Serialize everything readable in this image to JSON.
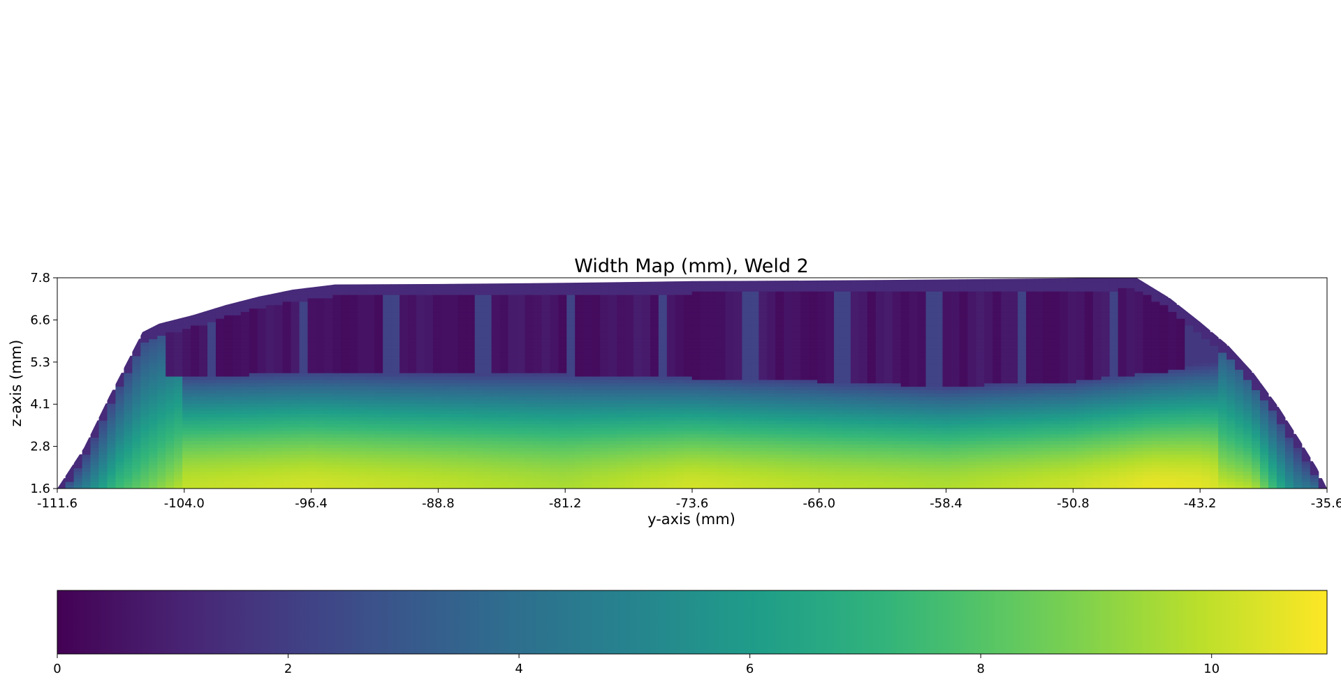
{
  "chart_data": [
    {
      "type": "heatmap",
      "title": "Width Map (mm), Weld 2",
      "xlabel": "y-axis (mm)",
      "ylabel": "z-axis (mm)",
      "xlim": [
        -111.6,
        -35.6
      ],
      "ylim": [
        1.6,
        7.8
      ],
      "x_ticks": [
        "-111.6",
        "-104.0",
        "-96.4",
        "-88.8",
        "-81.2",
        "-73.6",
        "-66.0",
        "-58.4",
        "-50.8",
        "-43.2",
        "-35.6"
      ],
      "y_ticks": [
        "1.6",
        "2.8",
        "4.1",
        "5.3",
        "6.6",
        "7.8"
      ],
      "value_range": [
        0,
        11
      ],
      "grid": false,
      "upper_boundary": [
        [
          -111.6,
          1.6
        ],
        [
          -110.0,
          2.8
        ],
        [
          -108.5,
          4.3
        ],
        [
          -106.5,
          6.2
        ],
        [
          -105.5,
          6.45
        ],
        [
          -103.5,
          6.7
        ],
        [
          -101.5,
          7.0
        ],
        [
          -99.5,
          7.25
        ],
        [
          -97.5,
          7.45
        ],
        [
          -95.0,
          7.6
        ],
        [
          -88.0,
          7.62
        ],
        [
          -81.2,
          7.65
        ],
        [
          -73.6,
          7.7
        ],
        [
          -66.0,
          7.72
        ],
        [
          -58.4,
          7.75
        ],
        [
          -48.0,
          7.8
        ],
        [
          -47.0,
          7.8
        ],
        [
          -45.0,
          7.2
        ],
        [
          -43.2,
          6.5
        ],
        [
          -41.5,
          5.8
        ],
        [
          -40.0,
          5.0
        ],
        [
          -38.5,
          4.0
        ],
        [
          -37.2,
          3.0
        ],
        [
          -36.2,
          2.2
        ],
        [
          -35.6,
          1.6
        ]
      ],
      "width_profile": [
        [
          -111.6,
          2.5
        ],
        [
          -108.0,
          7.5
        ],
        [
          -104.0,
          10.0
        ],
        [
          -96.4,
          10.3
        ],
        [
          -88.8,
          10.0
        ],
        [
          -81.2,
          9.6
        ],
        [
          -73.6,
          10.3
        ],
        [
          -66.0,
          9.9
        ],
        [
          -58.4,
          9.7
        ],
        [
          -50.8,
          10.2
        ],
        [
          -46.0,
          10.7
        ],
        [
          -43.2,
          10.6
        ],
        [
          -40.0,
          9.8
        ],
        [
          -37.5,
          5.0
        ],
        [
          -35.6,
          3.5
        ]
      ],
      "low_band_top": [
        [
          -104.0,
          4.9
        ],
        [
          -96.4,
          5.0
        ],
        [
          -88.8,
          4.95
        ],
        [
          -81.2,
          4.95
        ],
        [
          -73.6,
          4.85
        ],
        [
          -66.0,
          4.75
        ],
        [
          -58.4,
          4.6
        ],
        [
          -50.8,
          4.75
        ],
        [
          -46.0,
          5.0
        ],
        [
          -42.0,
          5.2
        ]
      ]
    },
    {
      "type": "colorbar",
      "colormap": "viridis",
      "range": [
        0,
        11
      ],
      "ticks": [
        "0",
        "2",
        "4",
        "6",
        "8",
        "10"
      ]
    }
  ]
}
